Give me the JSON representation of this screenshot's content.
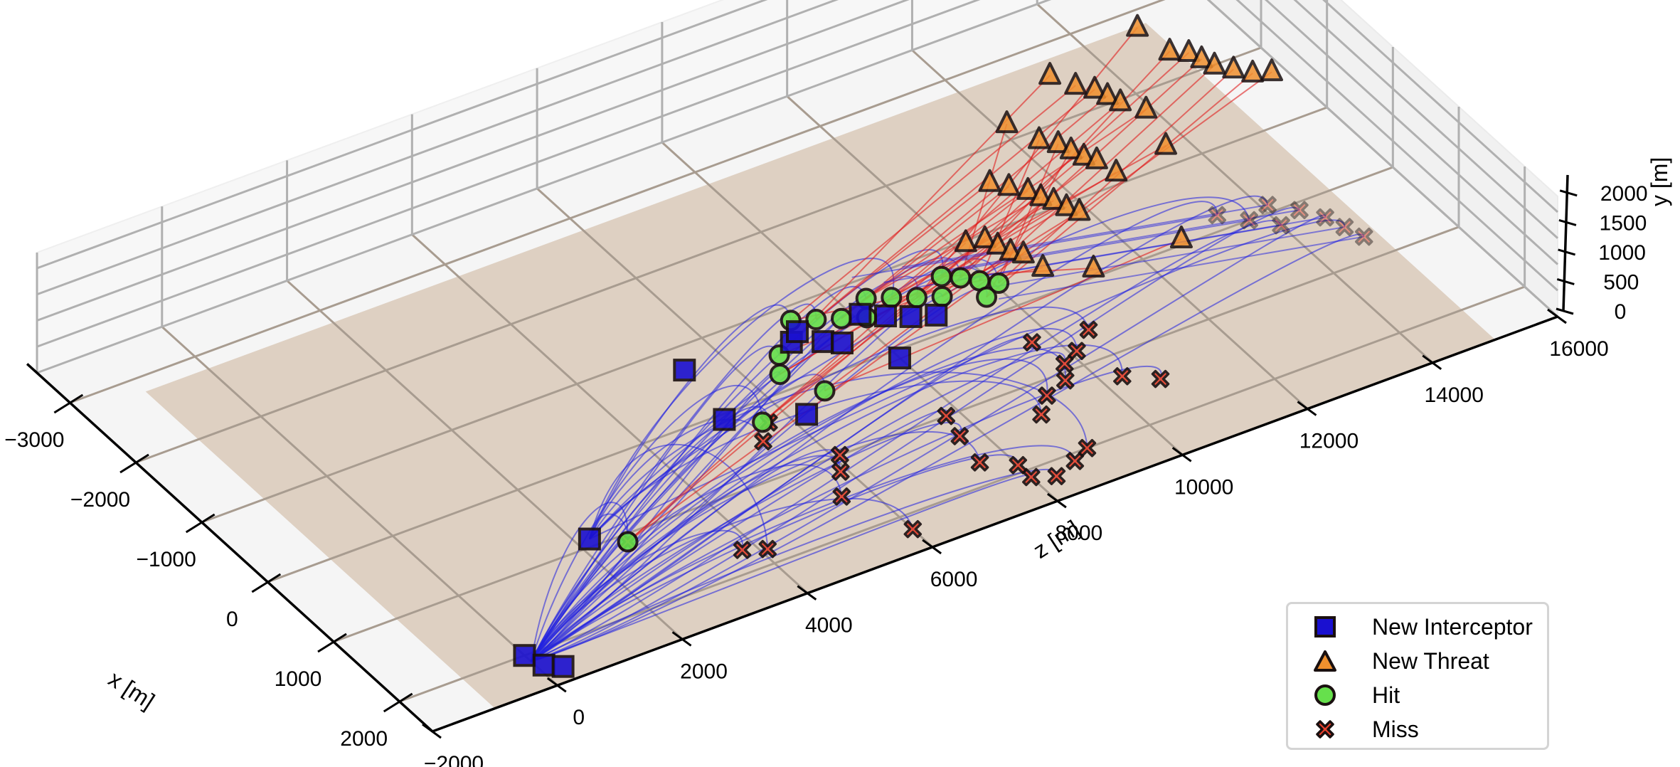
{
  "chart_data": {
    "type": "scatter3d",
    "title": "",
    "axes": {
      "x": {
        "label": "x [m]",
        "ticks": [
          -3000,
          -2000,
          -1000,
          0,
          1000,
          2000
        ],
        "range": [
          -3500,
          2500
        ]
      },
      "z": {
        "label": "z [m]",
        "ticks": [
          -2000,
          0,
          2000,
          4000,
          6000,
          8000,
          10000,
          12000,
          14000,
          16000
        ],
        "range": [
          -2000,
          16000
        ]
      },
      "y": {
        "label": "y [m]",
        "ticks": [
          0,
          500,
          1000,
          1500,
          2000
        ],
        "range": [
          0,
          2300
        ]
      }
    },
    "grid": true,
    "ground_plane": {
      "color": "#d9c9b8",
      "x_range": [
        -2800,
        2500
      ],
      "z_range": [
        -1000,
        15000
      ]
    },
    "legend_position": "lower right",
    "legend": [
      {
        "label": "New Interceptor",
        "marker": "square",
        "color": "#1a10d0"
      },
      {
        "label": "New Threat",
        "marker": "triangle",
        "color": "#f0902e"
      },
      {
        "label": "Hit",
        "marker": "circle",
        "color": "#66e04c"
      },
      {
        "label": "Miss",
        "marker": "x",
        "color": "#e8402c"
      }
    ],
    "trajectory_colors": {
      "interceptor": "#2020e0",
      "threat": "#e02020"
    },
    "series": [
      {
        "name": "New Interceptor",
        "marker": "square",
        "points": [
          {
            "x": 2000,
            "z": 0,
            "y": 0
          },
          {
            "x": 2200,
            "z": 100,
            "y": 0
          },
          {
            "x": 2300,
            "z": 300,
            "y": 0
          },
          {
            "x": 900,
            "z": 2200,
            "y": 0
          },
          {
            "x": 100,
            "z": 5200,
            "y": 50
          },
          {
            "x": -600,
            "z": 5300,
            "y": 150
          },
          {
            "x": 400,
            "z": 6200,
            "y": 50
          },
          {
            "x": -400,
            "z": 6800,
            "y": 250
          },
          {
            "x": -500,
            "z": 7000,
            "y": 250
          },
          {
            "x": -300,
            "z": 7200,
            "y": 200
          },
          {
            "x": -200,
            "z": 7400,
            "y": 200
          },
          {
            "x": 200,
            "z": 7900,
            "y": 150
          },
          {
            "x": -400,
            "z": 7900,
            "y": 300
          },
          {
            "x": -300,
            "z": 8200,
            "y": 250
          },
          {
            "x": -200,
            "z": 8500,
            "y": 220
          },
          {
            "x": -100,
            "z": 8800,
            "y": 230
          }
        ]
      },
      {
        "name": "New Threat",
        "marker": "triangle",
        "points": [
          {
            "x": -600,
            "z": 9800,
            "y": 600
          },
          {
            "x": -500,
            "z": 10000,
            "y": 700
          },
          {
            "x": -400,
            "z": 10100,
            "y": 650
          },
          {
            "x": -300,
            "z": 10200,
            "y": 600
          },
          {
            "x": -200,
            "z": 10300,
            "y": 620
          },
          {
            "x": 0,
            "z": 10400,
            "y": 550
          },
          {
            "x": -900,
            "z": 10500,
            "y": 1100
          },
          {
            "x": -800,
            "z": 10700,
            "y": 1050
          },
          {
            "x": -700,
            "z": 10900,
            "y": 1000
          },
          {
            "x": -600,
            "z": 11000,
            "y": 950
          },
          {
            "x": -500,
            "z": 11100,
            "y": 950
          },
          {
            "x": -400,
            "z": 11200,
            "y": 900
          },
          {
            "x": -300,
            "z": 11300,
            "y": 880
          },
          {
            "x": 200,
            "z": 11000,
            "y": 500
          },
          {
            "x": -1400,
            "z": 11300,
            "y": 1300
          },
          {
            "x": -1100,
            "z": 11500,
            "y": 1250
          },
          {
            "x": -1000,
            "z": 11700,
            "y": 1200
          },
          {
            "x": -900,
            "z": 11800,
            "y": 1150
          },
          {
            "x": -800,
            "z": 11900,
            "y": 1100
          },
          {
            "x": -700,
            "z": 12000,
            "y": 1100
          },
          {
            "x": -500,
            "z": 12100,
            "y": 1050
          },
          {
            "x": 300,
            "z": 12300,
            "y": 600
          },
          {
            "x": -1600,
            "z": 12200,
            "y": 1600
          },
          {
            "x": -1400,
            "z": 12400,
            "y": 1550
          },
          {
            "x": -1300,
            "z": 12600,
            "y": 1500
          },
          {
            "x": -1200,
            "z": 12700,
            "y": 1450
          },
          {
            "x": -1100,
            "z": 12800,
            "y": 1400
          },
          {
            "x": -900,
            "z": 13000,
            "y": 1400
          },
          {
            "x": -600,
            "z": 13000,
            "y": 1050
          },
          {
            "x": -1600,
            "z": 13600,
            "y": 1900
          },
          {
            "x": -1300,
            "z": 13800,
            "y": 1700
          },
          {
            "x": -1200,
            "z": 14000,
            "y": 1700
          },
          {
            "x": -1100,
            "z": 14100,
            "y": 1650
          },
          {
            "x": -1000,
            "z": 14200,
            "y": 1600
          },
          {
            "x": -900,
            "z": 14400,
            "y": 1550
          },
          {
            "x": -800,
            "z": 14600,
            "y": 1500
          },
          {
            "x": -700,
            "z": 14800,
            "y": 1550
          }
        ]
      },
      {
        "name": "Hit",
        "marker": "circle",
        "points": [
          {
            "x": 1100,
            "z": 2600,
            "y": 0
          },
          {
            "x": 300,
            "z": 5600,
            "y": 50
          },
          {
            "x": -100,
            "z": 6300,
            "y": 200
          },
          {
            "x": 200,
            "z": 6700,
            "y": 50
          },
          {
            "x": -300,
            "z": 6500,
            "y": 250
          },
          {
            "x": -600,
            "z": 7000,
            "y": 350
          },
          {
            "x": -500,
            "z": 7300,
            "y": 350
          },
          {
            "x": -400,
            "z": 7600,
            "y": 350
          },
          {
            "x": -300,
            "z": 7900,
            "y": 350
          },
          {
            "x": -500,
            "z": 8100,
            "y": 400
          },
          {
            "x": -400,
            "z": 8400,
            "y": 400
          },
          {
            "x": -300,
            "z": 8700,
            "y": 380
          },
          {
            "x": -200,
            "z": 9000,
            "y": 380
          },
          {
            "x": -400,
            "z": 9200,
            "y": 450
          },
          {
            "x": -300,
            "z": 9400,
            "y": 450
          },
          {
            "x": -200,
            "z": 9600,
            "y": 420
          },
          {
            "x": -100,
            "z": 9800,
            "y": 400
          },
          {
            "x": 0,
            "z": 9500,
            "y": 380
          }
        ]
      },
      {
        "name": "Miss",
        "marker": "x",
        "points": [
          {
            "x": 1100,
            "z": 2600,
            "y": 0
          },
          {
            "x": 1700,
            "z": 3800,
            "y": 0
          },
          {
            "x": 1800,
            "z": 4100,
            "y": 0
          },
          {
            "x": 2200,
            "z": 6000,
            "y": 0
          },
          {
            "x": 1500,
            "z": 5600,
            "y": 0
          },
          {
            "x": 1200,
            "z": 5900,
            "y": 0
          },
          {
            "x": 1000,
            "z": 6100,
            "y": 0
          },
          {
            "x": 500,
            "z": 5400,
            "y": 0
          },
          {
            "x": 300,
            "z": 5700,
            "y": 0
          },
          {
            "x": 2100,
            "z": 8000,
            "y": 0
          },
          {
            "x": 2200,
            "z": 8300,
            "y": 0
          },
          {
            "x": 2100,
            "z": 8700,
            "y": 0
          },
          {
            "x": 2000,
            "z": 9000,
            "y": 0
          },
          {
            "x": 1700,
            "z": 7600,
            "y": 0
          },
          {
            "x": 1900,
            "z": 8000,
            "y": 0
          },
          {
            "x": 1300,
            "z": 7700,
            "y": 0
          },
          {
            "x": 1000,
            "z": 7800,
            "y": 0
          },
          {
            "x": 1400,
            "z": 8900,
            "y": 0
          },
          {
            "x": 1200,
            "z": 9200,
            "y": 0
          },
          {
            "x": 1300,
            "z": 10300,
            "y": 0
          },
          {
            "x": 1500,
            "z": 10700,
            "y": 0
          },
          {
            "x": 800,
            "z": 10100,
            "y": 0
          },
          {
            "x": 600,
            "z": 10500,
            "y": 0
          },
          {
            "x": 1100,
            "z": 9600,
            "y": 0
          },
          {
            "x": 900,
            "z": 9800,
            "y": 0
          },
          {
            "x": 500,
            "z": 9700,
            "y": 0
          },
          {
            "x": -200,
            "z": 13400,
            "y": 0
          },
          {
            "x": 0,
            "z": 13700,
            "y": 0
          },
          {
            "x": 200,
            "z": 14000,
            "y": 0
          },
          {
            "x": -100,
            "z": 14100,
            "y": 0
          },
          {
            "x": 100,
            "z": 14400,
            "y": 0
          },
          {
            "x": 300,
            "z": 14600,
            "y": 0
          },
          {
            "x": 500,
            "z": 14700,
            "y": 0
          },
          {
            "x": 700,
            "z": 14800,
            "y": 0
          }
        ]
      }
    ]
  },
  "legend": {
    "items": [
      {
        "label": "New Interceptor"
      },
      {
        "label": "New Threat"
      },
      {
        "label": "Hit"
      },
      {
        "label": "Miss"
      }
    ]
  },
  "axes_labels": {
    "x": "x [m]",
    "y": "y [m]",
    "z": "z [m]"
  }
}
